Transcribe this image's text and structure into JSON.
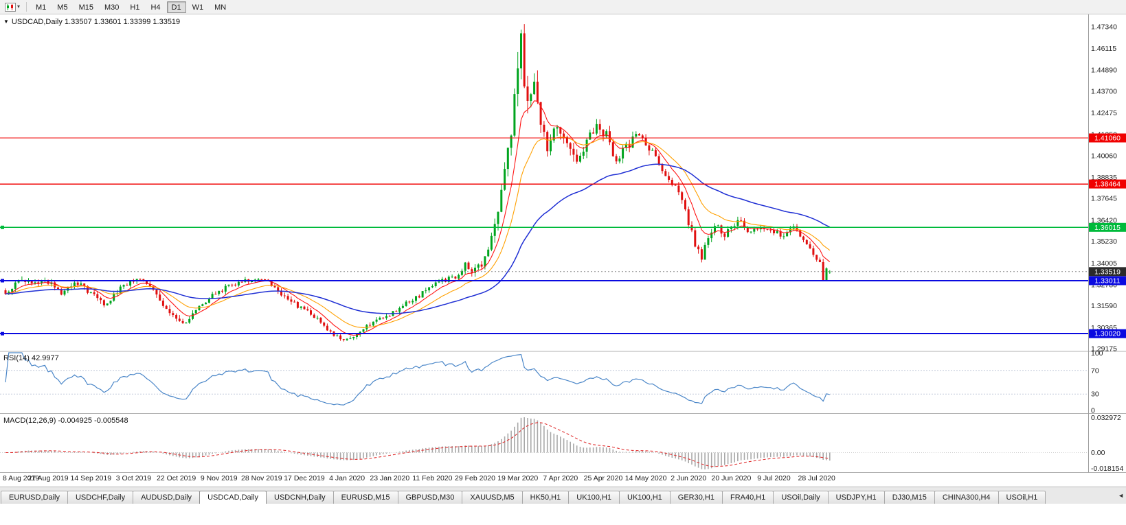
{
  "toolbar": {
    "timeframes": [
      "M1",
      "M5",
      "M15",
      "M30",
      "H1",
      "H4",
      "D1",
      "W1",
      "MN"
    ],
    "active_timeframe": "D1"
  },
  "icons": {
    "chart_dropdown": "▼",
    "toolbar_caret": "▾",
    "tab_scroll_left": "◄"
  },
  "chart": {
    "symbol_with_tf": "USDCAD,Daily",
    "ohlc_text": "1.33507 1.33601 1.33399 1.33519"
  },
  "rsi": {
    "name": "RSI(14)",
    "value_text": "42.9977"
  },
  "macd": {
    "name": "MACD(12,26,9)",
    "values_text": "-0.004925 -0.005548"
  },
  "tabs": [
    {
      "label": "EURUSD,Daily",
      "active": false
    },
    {
      "label": "USDCHF,Daily",
      "active": false
    },
    {
      "label": "AUDUSD,Daily",
      "active": false
    },
    {
      "label": "USDCAD,Daily",
      "active": true
    },
    {
      "label": "USDCNH,Daily",
      "active": false
    },
    {
      "label": "EURUSD,M15",
      "active": false
    },
    {
      "label": "GBPUSD,M30",
      "active": false
    },
    {
      "label": "XAUUSD,M5",
      "active": false
    },
    {
      "label": "HK50,H1",
      "active": false
    },
    {
      "label": "UK100,H1",
      "active": false
    },
    {
      "label": "UK100,H1",
      "active": false
    },
    {
      "label": "GER30,H1",
      "active": false
    },
    {
      "label": "FRA40,H1",
      "active": false
    },
    {
      "label": "USOil,Daily",
      "active": false
    },
    {
      "label": "USDJPY,H1",
      "active": false
    },
    {
      "label": "DJ30,M15",
      "active": false
    },
    {
      "label": "CHINA300,H4",
      "active": false
    },
    {
      "label": "USOil,H1",
      "active": false
    }
  ],
  "chart_data": {
    "type": "candlestick",
    "symbol": "USDCAD",
    "timeframe": "Daily",
    "bars": 252,
    "x_label_every": 13,
    "x_axis_labels": [
      "8 Aug 2019",
      "27 Aug 2019",
      "14 Sep 2019",
      "3 Oct 2019",
      "22 Oct 2019",
      "9 Nov 2019",
      "28 Nov 2019",
      "17 Dec 2019",
      "4 Jan 2020",
      "23 Jan 2020",
      "11 Feb 2020",
      "29 Feb 2020",
      "19 Mar 2020",
      "7 Apr 2020",
      "25 Apr 2020",
      "14 May 2020",
      "2 Jun 2020",
      "20 Jun 2020",
      "9 Jul 2020",
      "28 Jul 2020"
    ],
    "y_axis_labels": [
      "1.47340",
      "1.46115",
      "1.44890",
      "1.43700",
      "1.42475",
      "1.41250",
      "1.40060",
      "1.38835",
      "1.37645",
      "1.36420",
      "1.35230",
      "1.34005",
      "1.32780",
      "1.31590",
      "1.30365",
      "1.29175"
    ],
    "y_range": [
      1.291,
      1.4795
    ],
    "last_ohlc": {
      "open": 1.33507,
      "high": 1.33601,
      "low": 1.33399,
      "close": 1.33519
    },
    "current_price": 1.33519,
    "current_price_label": "1.33519",
    "horizontal_lines": [
      {
        "value": 1.4106,
        "label": "1.41060",
        "color": "#f00000",
        "width": 1.4,
        "handle": false
      },
      {
        "value": 1.38464,
        "label": "1.38464",
        "color": "#f00000",
        "width": 1.4,
        "handle": false
      },
      {
        "value": 1.36015,
        "label": "1.36015",
        "color": "#00ba3b",
        "width": 1.6,
        "handle": true
      },
      {
        "value": 1.33011,
        "label": "1.33011",
        "color": "#0a0ae0",
        "width": 2,
        "handle": true
      },
      {
        "value": 1.3002,
        "label": "1.30020",
        "color": "#0a0ae0",
        "width": 2,
        "handle": true
      }
    ],
    "moving_averages": [
      {
        "period": 8,
        "color": "#ff1414",
        "width": 1.1
      },
      {
        "period": 18,
        "color": "#ffa000",
        "width": 1.1
      },
      {
        "period": 55,
        "color": "#1f2fd4",
        "width": 1.5
      }
    ],
    "rsi": {
      "period": 14,
      "current": 42.9977,
      "levels": [
        70,
        30
      ],
      "axis_labels": [
        "100",
        "70",
        "30",
        "0"
      ],
      "color": "#4a86c8"
    },
    "macd": {
      "fast": 12,
      "slow": 26,
      "signal": 9,
      "current_main": -0.004925,
      "current_signal": -0.005548,
      "axis_labels": [
        "0.032972",
        "0.00",
        "-0.018154"
      ],
      "histogram_color": "#a8a8a8",
      "signal_color": "#e03030"
    },
    "candle_up_color": "#00a41e",
    "candle_down_color": "#e01010",
    "close_anchors": [
      [
        0,
        1.3235,
        0.004
      ],
      [
        4,
        1.33,
        0.0038
      ],
      [
        8,
        1.3282,
        0.0035
      ],
      [
        13,
        1.3292,
        0.0035
      ],
      [
        17,
        1.3235,
        0.004
      ],
      [
        21,
        1.3298,
        0.0038
      ],
      [
        26,
        1.3235,
        0.0036
      ],
      [
        30,
        1.3165,
        0.0045
      ],
      [
        34,
        1.3242,
        0.0035
      ],
      [
        38,
        1.3298,
        0.003
      ],
      [
        41,
        1.3318,
        0.003
      ],
      [
        45,
        1.3242,
        0.0038
      ],
      [
        48,
        1.3165,
        0.004
      ],
      [
        52,
        1.3092,
        0.004
      ],
      [
        55,
        1.3062,
        0.0035
      ],
      [
        58,
        1.3132,
        0.0035
      ],
      [
        62,
        1.32,
        0.003
      ],
      [
        65,
        1.3242,
        0.003
      ],
      [
        69,
        1.328,
        0.0028
      ],
      [
        73,
        1.33,
        0.0028
      ],
      [
        78,
        1.3312,
        0.0028
      ],
      [
        81,
        1.3282,
        0.003
      ],
      [
        84,
        1.3222,
        0.0034
      ],
      [
        88,
        1.3172,
        0.0034
      ],
      [
        91,
        1.3132,
        0.003
      ],
      [
        95,
        1.3092,
        0.003
      ],
      [
        99,
        1.3012,
        0.0028
      ],
      [
        103,
        1.2962,
        0.0026
      ],
      [
        106,
        1.2986,
        0.0026
      ],
      [
        110,
        1.3042,
        0.0028
      ],
      [
        114,
        1.3082,
        0.003
      ],
      [
        117,
        1.3112,
        0.003
      ],
      [
        121,
        1.3162,
        0.003
      ],
      [
        125,
        1.3202,
        0.0028
      ],
      [
        129,
        1.3262,
        0.0028
      ],
      [
        133,
        1.3302,
        0.0028
      ],
      [
        137,
        1.3322,
        0.003
      ],
      [
        140,
        1.3392,
        0.0045
      ],
      [
        142,
        1.3342,
        0.005
      ],
      [
        145,
        1.3402,
        0.0052
      ],
      [
        148,
        1.3522,
        0.007
      ],
      [
        150,
        1.3652,
        0.009
      ],
      [
        152,
        1.3902,
        0.012
      ],
      [
        154,
        1.4122,
        0.015
      ],
      [
        156,
        1.4502,
        0.018
      ],
      [
        157,
        1.4642,
        0.0165
      ],
      [
        159,
        1.4282,
        0.015
      ],
      [
        161,
        1.4452,
        0.013
      ],
      [
        163,
        1.4152,
        0.012
      ],
      [
        165,
        1.4062,
        0.01
      ],
      [
        168,
        1.4162,
        0.009
      ],
      [
        171,
        1.4062,
        0.008
      ],
      [
        174,
        1.3992,
        0.007
      ],
      [
        177,
        1.4092,
        0.007
      ],
      [
        180,
        1.4182,
        0.0062
      ],
      [
        183,
        1.4122,
        0.006
      ],
      [
        186,
        1.3982,
        0.0058
      ],
      [
        189,
        1.4052,
        0.0055
      ],
      [
        192,
        1.4112,
        0.005
      ],
      [
        195,
        1.4082,
        0.005
      ],
      [
        198,
        1.3992,
        0.005
      ],
      [
        201,
        1.3902,
        0.0046
      ],
      [
        204,
        1.3832,
        0.0044
      ],
      [
        206,
        1.3772,
        0.0042
      ],
      [
        208,
        1.3622,
        0.005
      ],
      [
        210,
        1.3512,
        0.005
      ],
      [
        212,
        1.3432,
        0.0046
      ],
      [
        214,
        1.3542,
        0.0044
      ],
      [
        216,
        1.3622,
        0.004
      ],
      [
        219,
        1.3562,
        0.004
      ],
      [
        221,
        1.3592,
        0.0038
      ],
      [
        224,
        1.3642,
        0.0038
      ],
      [
        227,
        1.3562,
        0.0036
      ],
      [
        230,
        1.3612,
        0.0035
      ],
      [
        234,
        1.3582,
        0.0032
      ],
      [
        237,
        1.3546,
        0.0032
      ],
      [
        240,
        1.3602,
        0.003
      ],
      [
        243,
        1.3532,
        0.003
      ],
      [
        245,
        1.3472,
        0.0032
      ],
      [
        248,
        1.3405,
        0.0035
      ],
      [
        249,
        1.3295,
        0.004
      ],
      [
        250,
        1.3358,
        0.0035
      ],
      [
        251,
        1.33519,
        0.001
      ]
    ]
  }
}
